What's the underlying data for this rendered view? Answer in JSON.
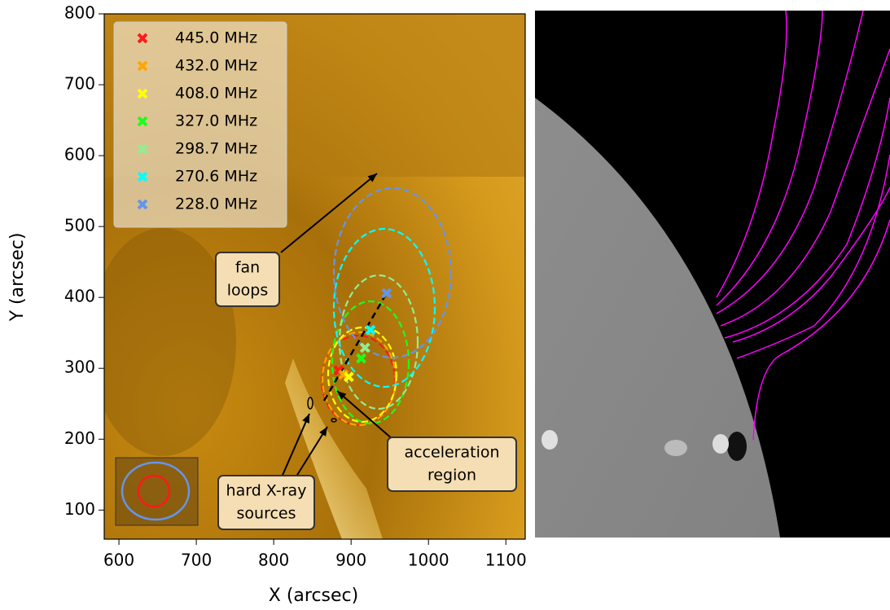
{
  "chart_data": {
    "type": "scatter",
    "xlabel": "X (arcsec)",
    "ylabel": "Y (arcsec)",
    "xlim": [
      581,
      1125
    ],
    "ylim": [
      59,
      800
    ],
    "xticks": [
      600,
      700,
      800,
      900,
      1000,
      1100
    ],
    "yticks": [
      100,
      200,
      300,
      400,
      500,
      600,
      700,
      800
    ],
    "legend": "upper left",
    "series": [
      {
        "name": "445.0 MHz",
        "color": "#ff1a1a",
        "x": [
          884
        ],
        "values": [
          297
        ]
      },
      {
        "name": "432.0 MHz",
        "color": "#ffa500",
        "x": [
          890
        ],
        "values": [
          291
        ]
      },
      {
        "name": "408.0 MHz",
        "color": "#ffff00",
        "x": [
          897
        ],
        "values": [
          288
        ]
      },
      {
        "name": "327.0 MHz",
        "color": "#1aff1a",
        "x": [
          913
        ],
        "values": [
          314
        ]
      },
      {
        "name": "298.7 MHz",
        "color": "#90ee90",
        "x": [
          918
        ],
        "values": [
          329
        ]
      },
      {
        "name": "270.6 MHz",
        "color": "#00ffff",
        "x": [
          925
        ],
        "values": [
          354
        ]
      },
      {
        "name": "228.0 MHz",
        "color": "#6495ed",
        "x": [
          946
        ],
        "values": [
          406
        ]
      }
    ],
    "annotations": [
      {
        "lines": [
          "fan",
          "loops"
        ]
      },
      {
        "lines": [
          "acceleration",
          "region"
        ]
      },
      {
        "lines": [
          "hard X-ray",
          "sources"
        ]
      }
    ]
  }
}
